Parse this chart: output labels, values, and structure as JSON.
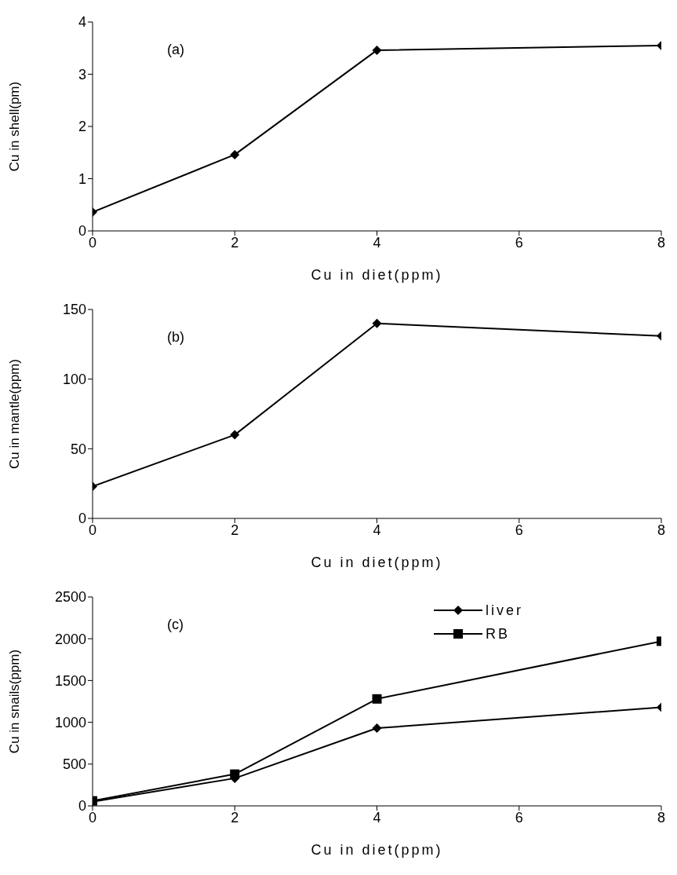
{
  "chart_data": [
    {
      "type": "line",
      "x": [
        0,
        2,
        4,
        8
      ],
      "series": [
        {
          "color": "#000000",
          "marker": "diamond",
          "values": [
            0.36,
            1.46,
            3.46,
            3.55
          ]
        }
      ],
      "xlim": [
        0,
        8
      ],
      "xticks": [
        0,
        2,
        4,
        6,
        8
      ],
      "ylim": [
        0,
        4
      ],
      "yticks": [
        0,
        1,
        2,
        3,
        4
      ],
      "xlabel": "Cu in diet(ppm)",
      "ylabel": "Cu in shell(pm)",
      "annotations": [
        "(a)"
      ],
      "legend": false
    },
    {
      "type": "line",
      "x": [
        0,
        2,
        4,
        8
      ],
      "series": [
        {
          "color": "#000000",
          "marker": "diamond",
          "values": [
            23,
            60,
            140,
            131
          ]
        }
      ],
      "xlim": [
        0,
        8
      ],
      "xticks": [
        0,
        2,
        4,
        6,
        8
      ],
      "ylim": [
        0,
        150
      ],
      "yticks": [
        0,
        50,
        100,
        150
      ],
      "xlabel": "Cu in diet(ppm)",
      "ylabel": "Cu in mantle(ppm)",
      "annotations": [
        "(b)"
      ],
      "legend": false
    },
    {
      "type": "line",
      "x": [
        0,
        2,
        4,
        8
      ],
      "series": [
        {
          "name": "liver",
          "color": "#000000",
          "marker": "diamond",
          "values": [
            50,
            330,
            930,
            1180
          ]
        },
        {
          "name": "RB",
          "color": "#000000",
          "marker": "square",
          "values": [
            60,
            380,
            1280,
            1970
          ]
        }
      ],
      "xlim": [
        0,
        8
      ],
      "xticks": [
        0,
        2,
        4,
        6,
        8
      ],
      "ylim": [
        0,
        2500
      ],
      "yticks": [
        0,
        500,
        1000,
        1500,
        2000,
        2500
      ],
      "xlabel": "Cu in diet(ppm)",
      "ylabel": "Cu in snails(ppm)",
      "annotations": [
        "(c)"
      ],
      "legend": "top right"
    }
  ]
}
